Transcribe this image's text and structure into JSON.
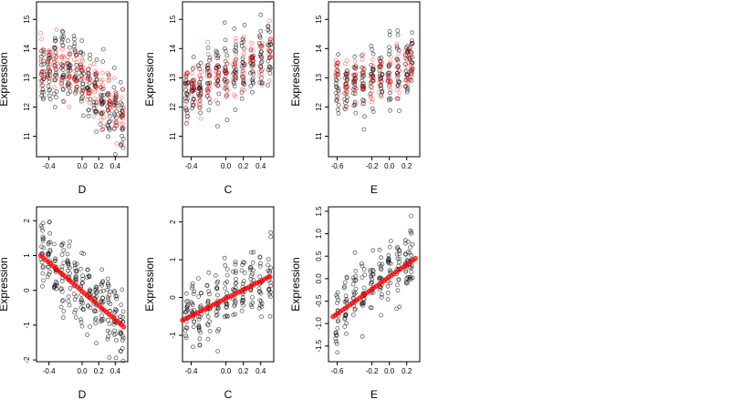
{
  "chart_data": [
    {
      "type": "scatter",
      "xlabel": "D",
      "ylabel": "Expression",
      "xlim": [
        -0.55,
        0.55
      ],
      "ylim": [
        10.3,
        15.6
      ],
      "xticks": [
        -0.4,
        0.0,
        0.2,
        0.4
      ],
      "xtick_labels": [
        "-0.4",
        "0.0",
        "0.2",
        "0.4"
      ],
      "yticks": [
        11,
        12,
        13,
        14,
        15
      ],
      "ytick_labels": [
        "11",
        "12",
        "13",
        "14",
        "15"
      ],
      "grid": false,
      "series": [
        {
          "color": "#000000",
          "marker": "open-circle",
          "x_centers": [
            -0.48,
            -0.4,
            -0.32,
            -0.24,
            -0.16,
            -0.08,
            0.0,
            0.08,
            0.16,
            0.24,
            0.32,
            0.4,
            0.48
          ],
          "y_means": [
            13.2,
            13.3,
            13.4,
            13.5,
            13.3,
            13.2,
            13.0,
            12.8,
            12.5,
            12.3,
            12.0,
            11.8,
            11.5
          ]
        },
        {
          "color": "#ff0000",
          "marker": "open-circle",
          "x_centers": [
            -0.48,
            -0.4,
            -0.32,
            -0.24,
            -0.16,
            -0.08,
            0.0,
            0.08,
            0.16,
            0.24,
            0.32,
            0.4,
            0.48
          ],
          "y_means": [
            13.3,
            13.4,
            13.4,
            13.3,
            13.3,
            13.1,
            13.0,
            12.7,
            12.5,
            12.3,
            12.1,
            11.9,
            11.6
          ]
        }
      ]
    },
    {
      "type": "scatter",
      "xlabel": "C",
      "ylabel": "Expression",
      "xlim": [
        -0.5,
        0.55
      ],
      "ylim": [
        10.3,
        15.6
      ],
      "xticks": [
        -0.4,
        0.0,
        0.2,
        0.4
      ],
      "xtick_labels": [
        "-0.4",
        "0.0",
        "0.2",
        "0.4"
      ],
      "yticks": [
        11,
        12,
        13,
        14,
        15
      ],
      "ytick_labels": [
        "11",
        "12",
        "13",
        "14",
        "15"
      ],
      "grid": false,
      "series": [
        {
          "color": "#000000",
          "marker": "open-circle",
          "x_centers": [
            -0.45,
            -0.38,
            -0.3,
            -0.2,
            -0.1,
            0.0,
            0.1,
            0.2,
            0.3,
            0.4,
            0.5
          ],
          "y_means": [
            12.5,
            12.6,
            12.7,
            12.8,
            13.0,
            13.1,
            13.3,
            13.4,
            13.5,
            13.7,
            13.8
          ]
        },
        {
          "color": "#ff0000",
          "marker": "open-circle",
          "x_centers": [
            -0.45,
            -0.38,
            -0.3,
            -0.2,
            -0.1,
            0.0,
            0.1,
            0.2,
            0.3,
            0.4,
            0.5
          ],
          "y_means": [
            12.5,
            12.6,
            12.7,
            12.8,
            13.0,
            13.1,
            13.3,
            13.4,
            13.5,
            13.7,
            13.8
          ]
        }
      ]
    },
    {
      "type": "scatter",
      "xlabel": "E",
      "ylabel": "Expression",
      "xlim": [
        -0.7,
        0.35
      ],
      "ylim": [
        10.3,
        15.6
      ],
      "xticks": [
        -0.6,
        -0.2,
        0.0,
        0.2
      ],
      "xtick_labels": [
        "-0.6",
        "-0.2",
        "0.0",
        "0.2"
      ],
      "yticks": [
        11,
        12,
        13,
        14,
        15
      ],
      "ytick_labels": [
        "11",
        "12",
        "13",
        "14",
        "15"
      ],
      "grid": false,
      "series": [
        {
          "color": "#000000",
          "marker": "open-circle",
          "x_centers": [
            -0.6,
            -0.5,
            -0.4,
            -0.3,
            -0.2,
            -0.1,
            0.0,
            0.1,
            0.2,
            0.25
          ],
          "y_means": [
            12.8,
            12.7,
            12.8,
            12.9,
            13.0,
            13.1,
            13.2,
            13.4,
            13.3,
            13.5
          ]
        },
        {
          "color": "#ff0000",
          "marker": "open-circle",
          "x_centers": [
            -0.6,
            -0.5,
            -0.4,
            -0.3,
            -0.2,
            -0.1,
            0.0,
            0.1,
            0.2,
            0.25
          ],
          "y_means": [
            12.9,
            12.8,
            12.7,
            12.8,
            12.9,
            13.0,
            13.1,
            13.2,
            13.3,
            13.4
          ]
        }
      ]
    },
    {
      "type": "scatter",
      "xlabel": "D",
      "ylabel": "Expression",
      "xlim": [
        -0.55,
        0.55
      ],
      "ylim": [
        -2.05,
        2.4
      ],
      "xticks": [
        -0.4,
        0.0,
        0.2,
        0.4
      ],
      "xtick_labels": [
        "-0.4",
        "0.0",
        "0.2",
        "0.4"
      ],
      "yticks": [
        -2,
        -1,
        0,
        1,
        2
      ],
      "ytick_labels": [
        "-2",
        "-1",
        "0",
        "1",
        "2"
      ],
      "grid": false,
      "series": [
        {
          "color": "#000000",
          "marker": "open-circle",
          "x_centers": [
            -0.48,
            -0.4,
            -0.32,
            -0.24,
            -0.16,
            -0.08,
            0.0,
            0.08,
            0.16,
            0.24,
            0.32,
            0.4,
            0.48
          ],
          "y_means": [
            1.0,
            0.85,
            0.65,
            0.5,
            0.35,
            0.15,
            0.0,
            -0.15,
            -0.35,
            -0.5,
            -0.65,
            -0.85,
            -1.0
          ]
        },
        {
          "color": "#ff0000",
          "marker": "filled-circle",
          "fit_line": {
            "x": [
              -0.5,
              0.5
            ],
            "y": [
              1.0,
              -1.05
            ]
          }
        }
      ]
    },
    {
      "type": "scatter",
      "xlabel": "C",
      "ylabel": "Expression",
      "xlim": [
        -0.5,
        0.55
      ],
      "ylim": [
        -1.7,
        2.4
      ],
      "xticks": [
        -0.4,
        0.0,
        0.2,
        0.4
      ],
      "xtick_labels": [
        "-0.4",
        "0.0",
        "0.2",
        "0.4"
      ],
      "yticks": [
        -1,
        0,
        1,
        2
      ],
      "ytick_labels": [
        "-1",
        "0",
        "1",
        "2"
      ],
      "grid": false,
      "series": [
        {
          "color": "#000000",
          "marker": "open-circle",
          "x_centers": [
            -0.45,
            -0.38,
            -0.3,
            -0.2,
            -0.1,
            0.0,
            0.1,
            0.2,
            0.3,
            0.4,
            0.5
          ],
          "y_means": [
            -0.5,
            -0.4,
            -0.3,
            -0.2,
            -0.1,
            0.0,
            0.1,
            0.2,
            0.3,
            0.45,
            0.55
          ]
        },
        {
          "color": "#ff0000",
          "marker": "filled-circle",
          "fit_line": {
            "x": [
              -0.5,
              0.5
            ],
            "y": [
              -0.6,
              0.55
            ]
          }
        }
      ]
    },
    {
      "type": "scatter",
      "xlabel": "E",
      "ylabel": "Expression",
      "xlim": [
        -0.7,
        0.35
      ],
      "ylim": [
        -1.85,
        1.6
      ],
      "xticks": [
        -0.6,
        -0.2,
        0.0,
        0.2
      ],
      "xtick_labels": [
        "-0.6",
        "-0.2",
        "0.0",
        "0.2"
      ],
      "yticks": [
        -1.5,
        -1.0,
        -0.5,
        0.0,
        0.5,
        1.0,
        1.5
      ],
      "ytick_labels": [
        "-1.5",
        "-1.0",
        "-0.5",
        "0.0",
        "0.5",
        "1.0",
        "1.5"
      ],
      "grid": false,
      "series": [
        {
          "color": "#000000",
          "marker": "open-circle",
          "x_centers": [
            -0.6,
            -0.5,
            -0.4,
            -0.3,
            -0.2,
            -0.1,
            0.0,
            0.1,
            0.2,
            0.25
          ],
          "y_means": [
            -0.75,
            -0.6,
            -0.45,
            -0.35,
            -0.2,
            -0.05,
            0.1,
            0.25,
            0.35,
            0.45
          ]
        },
        {
          "color": "#ff0000",
          "marker": "filled-circle",
          "fit_line": {
            "x": [
              -0.65,
              0.3
            ],
            "y": [
              -0.85,
              0.45
            ]
          }
        }
      ]
    }
  ]
}
